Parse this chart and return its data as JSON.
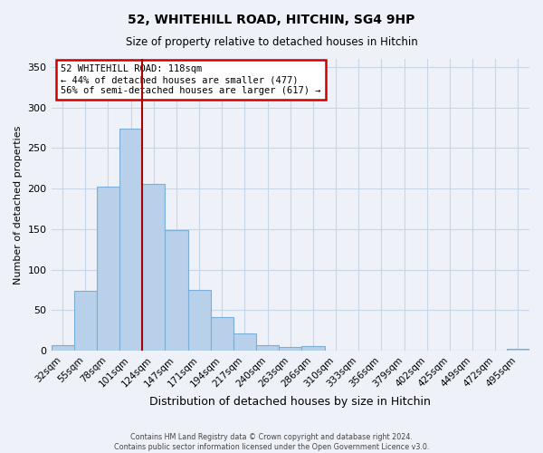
{
  "title": "52, WHITEHILL ROAD, HITCHIN, SG4 9HP",
  "subtitle": "Size of property relative to detached houses in Hitchin",
  "xlabel": "Distribution of detached houses by size in Hitchin",
  "ylabel": "Number of detached properties",
  "bar_labels": [
    "32sqm",
    "55sqm",
    "78sqm",
    "101sqm",
    "124sqm",
    "147sqm",
    "171sqm",
    "194sqm",
    "217sqm",
    "240sqm",
    "263sqm",
    "286sqm",
    "310sqm",
    "333sqm",
    "356sqm",
    "379sqm",
    "402sqm",
    "425sqm",
    "449sqm",
    "472sqm",
    "495sqm"
  ],
  "bar_values": [
    7,
    74,
    202,
    274,
    206,
    149,
    75,
    41,
    21,
    7,
    4,
    5,
    0,
    0,
    0,
    0,
    0,
    0,
    0,
    0,
    2
  ],
  "bar_color": "#b8d0ea",
  "bar_edge_color": "#7aaed6",
  "vline_color": "#aa0000",
  "vline_pos": 3.5,
  "annotation_title": "52 WHITEHILL ROAD: 118sqm",
  "annotation_line1": "← 44% of detached houses are smaller (477)",
  "annotation_line2": "56% of semi-detached houses are larger (617) →",
  "annotation_box_color": "#ffffff",
  "annotation_box_edge": "#cc0000",
  "ylim": [
    0,
    360
  ],
  "yticks": [
    0,
    50,
    100,
    150,
    200,
    250,
    300,
    350
  ],
  "footer1": "Contains HM Land Registry data © Crown copyright and database right 2024.",
  "footer2": "Contains public sector information licensed under the Open Government Licence v3.0.",
  "bg_color": "#eef2f8"
}
